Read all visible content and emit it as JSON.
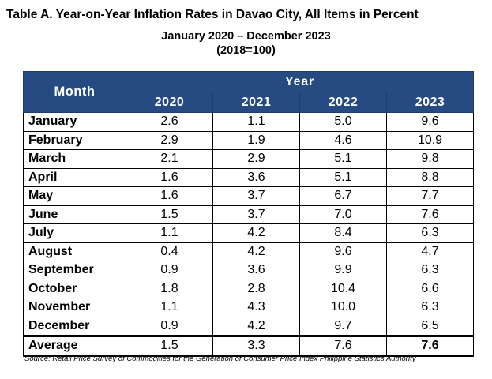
{
  "title": "Table A. Year-on-Year Inflation Rates in Davao City, All Items in Percent",
  "subtitle_line1": "January 2020 – December 2023",
  "subtitle_line2": "(2018=100)",
  "source": "Source: Retail Price Survey of Commodities for the Generation of Consumer Price Index Philippine Statistics Authority",
  "colors": {
    "header_bg": "#254b82",
    "header_text": "#ffffff"
  },
  "chart_data": {
    "type": "table",
    "title": "Table A. Year-on-Year Inflation Rates in Davao City, All Items in Percent",
    "header": {
      "month": "Month",
      "year_group": "Year",
      "years": [
        "2020",
        "2021",
        "2022",
        "2023"
      ]
    },
    "rows": [
      {
        "month": "January",
        "values": [
          "2.6",
          "1.1",
          "5.0",
          "9.6"
        ]
      },
      {
        "month": "February",
        "values": [
          "2.9",
          "1.9",
          "4.6",
          "10.9"
        ]
      },
      {
        "month": "March",
        "values": [
          "2.1",
          "2.9",
          "5.1",
          "9.8"
        ]
      },
      {
        "month": "April",
        "values": [
          "1.6",
          "3.6",
          "5.1",
          "8.8"
        ]
      },
      {
        "month": "May",
        "values": [
          "1.6",
          "3.7",
          "6.7",
          "7.7"
        ]
      },
      {
        "month": "June",
        "values": [
          "1.5",
          "3.7",
          "7.0",
          "7.6"
        ]
      },
      {
        "month": "July",
        "values": [
          "1.1",
          "4.2",
          "8.4",
          "6.3"
        ]
      },
      {
        "month": "August",
        "values": [
          "0.4",
          "4.2",
          "9.6",
          "4.7"
        ]
      },
      {
        "month": "September",
        "values": [
          "0.9",
          "3.6",
          "9.9",
          "6.3"
        ]
      },
      {
        "month": "October",
        "values": [
          "1.8",
          "2.8",
          "10.4",
          "6.6"
        ]
      },
      {
        "month": "November",
        "values": [
          "1.1",
          "4.3",
          "10.0",
          "6.3"
        ]
      },
      {
        "month": "December",
        "values": [
          "0.9",
          "4.2",
          "9.7",
          "6.5"
        ]
      }
    ],
    "average": {
      "label": "Average",
      "values": [
        "1.5",
        "3.3",
        "7.6",
        "7.6"
      ],
      "bold_value_index": 3
    }
  }
}
